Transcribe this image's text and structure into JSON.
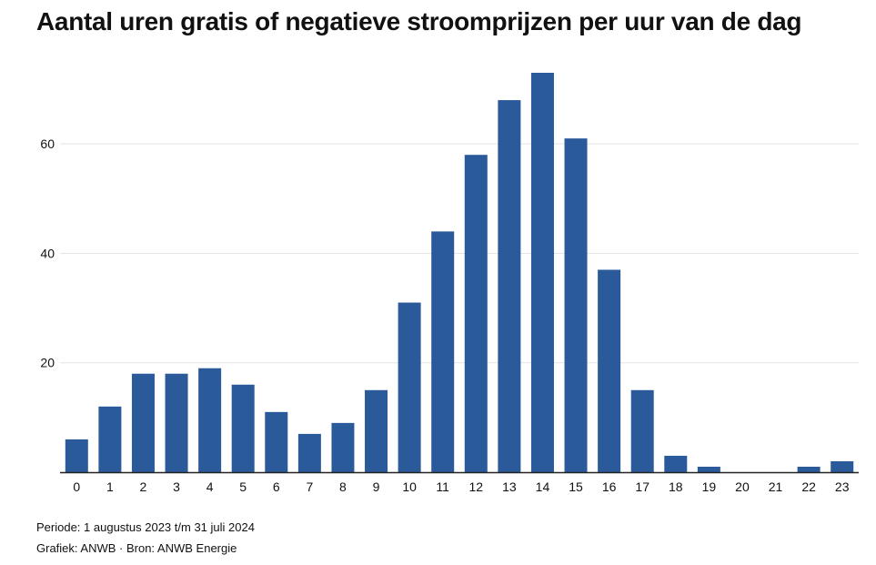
{
  "chart_data": {
    "type": "bar",
    "title": "Aantal uren gratis of negatieve stroomprijzen per uur van de dag",
    "xlabel": "",
    "ylabel": "",
    "categories": [
      "0",
      "1",
      "2",
      "3",
      "4",
      "5",
      "6",
      "7",
      "8",
      "9",
      "10",
      "11",
      "12",
      "13",
      "14",
      "15",
      "16",
      "17",
      "18",
      "19",
      "20",
      "21",
      "22",
      "23"
    ],
    "values": [
      6,
      12,
      18,
      18,
      19,
      16,
      11,
      7,
      9,
      15,
      31,
      44,
      58,
      68,
      73,
      61,
      37,
      15,
      3,
      1,
      0,
      0,
      1,
      2
    ],
    "yticks": [
      20,
      40,
      60
    ],
    "ylim": [
      0,
      73
    ],
    "grid": true,
    "bar_color": "#2a5a9a"
  },
  "footer": {
    "period": "Periode: 1 augustus 2023 t/m 31 juli 2024",
    "credit": "Grafiek: ANWB · Bron: ANWB Energie"
  },
  "colors": {
    "grid": "#e3e3e3",
    "axis": "#222222",
    "text": "#111111"
  }
}
